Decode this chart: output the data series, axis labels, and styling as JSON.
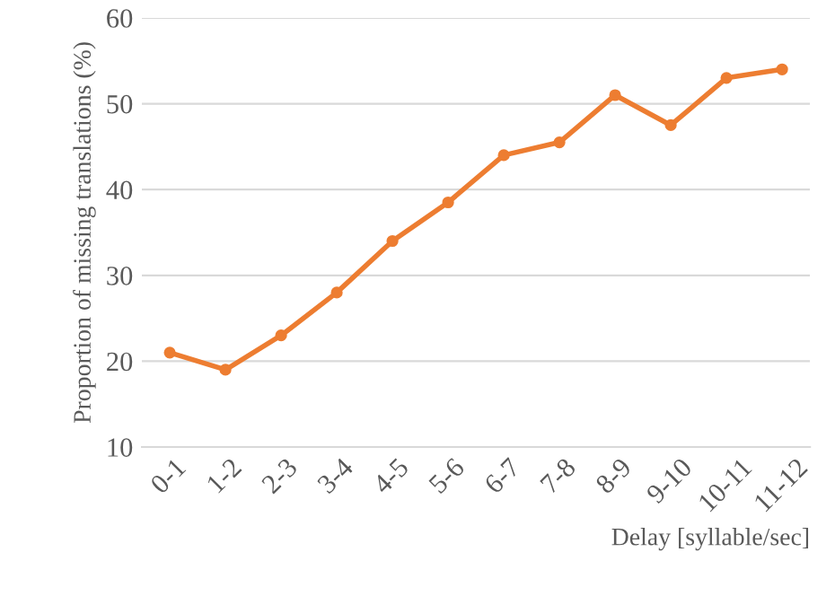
{
  "chart_data": {
    "type": "line",
    "xlabel": "Delay [syllable/sec]",
    "ylabel": "Proportion of missing translations (%)",
    "categories": [
      "0-1",
      "1-2",
      "2-3",
      "3-4",
      "4-5",
      "5-6",
      "6-7",
      "7-8",
      "8-9",
      "9-10",
      "10-11",
      "11-12"
    ],
    "series": [
      {
        "color": "#ed7d31",
        "values": [
          21,
          19,
          23,
          28,
          34,
          38.5,
          44,
          45.5,
          51,
          47.5,
          53,
          54
        ]
      }
    ],
    "ylim": [
      10,
      60
    ],
    "yticks": [
      10,
      20,
      30,
      40,
      50,
      60
    ],
    "grid": "y",
    "marker": "circle",
    "line_style": "solid"
  }
}
